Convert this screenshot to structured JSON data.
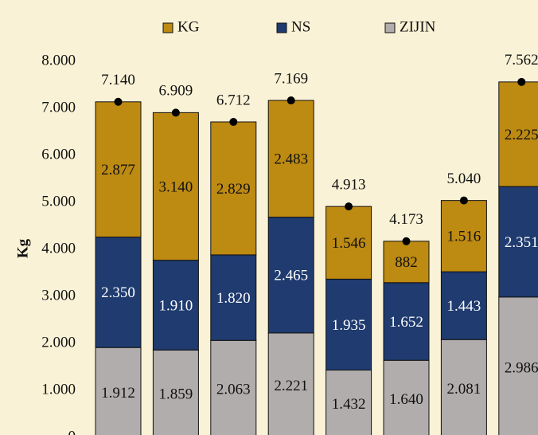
{
  "chart_data": {
    "type": "stacked_bar",
    "y_label": "Kg",
    "categories": [
      null,
      null,
      null,
      null,
      null,
      null,
      null,
      null
    ],
    "series": [
      {
        "name": "KG",
        "color": "#bd8a12",
        "values": [
          2877,
          3140,
          2829,
          2483,
          1546,
          882,
          1516,
          2225
        ],
        "value_labels": [
          "2.877",
          "3.140",
          "2.829",
          "2.483",
          "1.546",
          "882",
          "1.516",
          "2.225"
        ]
      },
      {
        "name": "NS",
        "color": "#1f3b6f",
        "values": [
          2350,
          1910,
          1820,
          2465,
          1935,
          1652,
          1443,
          2351
        ],
        "value_labels": [
          "2.350",
          "1.910",
          "1.820",
          "2.465",
          "1.935",
          "1.652",
          "1.443",
          "2.351"
        ]
      },
      {
        "name": "ZIJIN",
        "color": "#b1adac",
        "values": [
          1912,
          1859,
          2063,
          2221,
          1432,
          1640,
          2081,
          2986
        ],
        "value_labels": [
          "1.912",
          "1.859",
          "2.063",
          "2.221",
          "1.432",
          "1.640",
          "2.081",
          "2.986"
        ]
      }
    ],
    "totals": {
      "values": [
        7140,
        6909,
        6712,
        7169,
        4913,
        4173,
        5040,
        7562
      ],
      "value_labels": [
        "7.140",
        "6.909",
        "6.712",
        "7.169",
        "4.913",
        "4.173",
        "5.040",
        "7.562"
      ]
    },
    "ylim": [
      0,
      8000
    ],
    "yticks": [
      0,
      {
        "value": 1000,
        "label": "1.000"
      },
      {
        "value": 2000,
        "label": "2.000"
      },
      {
        "value": 3000,
        "label": "3.000"
      },
      {
        "value": 4000,
        "label": "4.000"
      },
      {
        "value": 5000,
        "label": "5.000"
      },
      {
        "value": 6000,
        "label": "6.000"
      },
      {
        "value": 7000,
        "label": "7.000"
      },
      {
        "value": 8000,
        "label": "8.000"
      }
    ],
    "legend": "top"
  }
}
